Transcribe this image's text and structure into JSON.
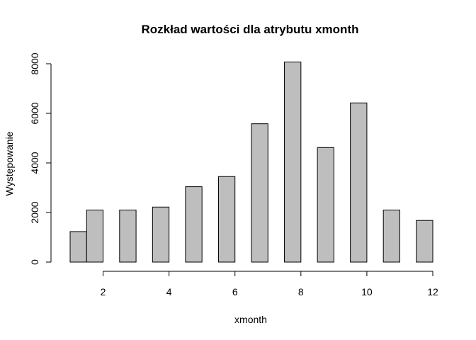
{
  "chart_data": {
    "type": "bar",
    "title": "Rozkład wartości dla atrybutu xmonth",
    "xlabel": "xmonth",
    "ylabel": "Występowanie",
    "xlim": [
      1,
      12
    ],
    "ylim": [
      0,
      8000
    ],
    "x_ticks": [
      2,
      4,
      6,
      8,
      10,
      12
    ],
    "y_ticks": [
      0,
      2000,
      4000,
      6000,
      8000
    ],
    "bars": [
      {
        "x0": 1.0,
        "x1": 1.5,
        "value": 1230
      },
      {
        "x0": 1.5,
        "x1": 2.0,
        "value": 2100
      },
      {
        "x0": 2.5,
        "x1": 3.0,
        "value": 2100
      },
      {
        "x0": 3.5,
        "x1": 4.0,
        "value": 2220
      },
      {
        "x0": 4.5,
        "x1": 5.0,
        "value": 3040
      },
      {
        "x0": 5.5,
        "x1": 6.0,
        "value": 3450
      },
      {
        "x0": 6.5,
        "x1": 7.0,
        "value": 5580
      },
      {
        "x0": 7.5,
        "x1": 8.0,
        "value": 8070
      },
      {
        "x0": 8.5,
        "x1": 9.0,
        "value": 4620
      },
      {
        "x0": 9.5,
        "x1": 10.0,
        "value": 6420
      },
      {
        "x0": 10.5,
        "x1": 11.0,
        "value": 2100
      },
      {
        "x0": 11.5,
        "x1": 12.0,
        "value": 1680
      }
    ],
    "bar_color": "#bebebe",
    "grid": false,
    "legend": "none"
  }
}
